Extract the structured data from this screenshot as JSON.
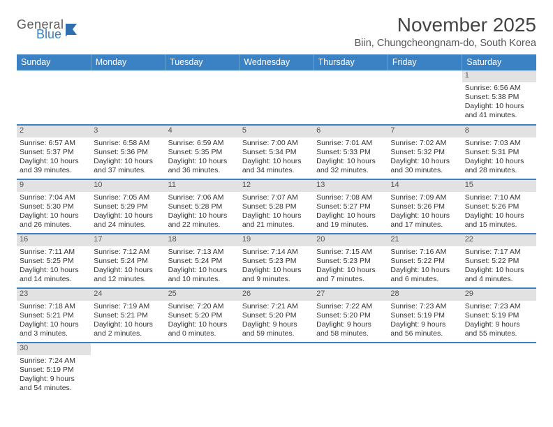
{
  "brand": {
    "part1": "General",
    "part2": "Blue"
  },
  "title": "November 2025",
  "location": "Biin, Chungcheongnam-do, South Korea",
  "colors": {
    "header_bg": "#3b82c4",
    "header_text": "#ffffff",
    "daynum_bg": "#e2e2e2",
    "row_border": "#3b82c4",
    "brand_gray": "#5a5a5a",
    "brand_blue": "#3a7fc4"
  },
  "weekdays": [
    "Sunday",
    "Monday",
    "Tuesday",
    "Wednesday",
    "Thursday",
    "Friday",
    "Saturday"
  ],
  "grid": {
    "first_weekday_index": 6,
    "rows": 6,
    "cols": 7
  },
  "days": [
    {
      "n": 1,
      "sunrise": "6:56 AM",
      "sunset": "5:38 PM",
      "daylight": "10 hours and 41 minutes."
    },
    {
      "n": 2,
      "sunrise": "6:57 AM",
      "sunset": "5:37 PM",
      "daylight": "10 hours and 39 minutes."
    },
    {
      "n": 3,
      "sunrise": "6:58 AM",
      "sunset": "5:36 PM",
      "daylight": "10 hours and 37 minutes."
    },
    {
      "n": 4,
      "sunrise": "6:59 AM",
      "sunset": "5:35 PM",
      "daylight": "10 hours and 36 minutes."
    },
    {
      "n": 5,
      "sunrise": "7:00 AM",
      "sunset": "5:34 PM",
      "daylight": "10 hours and 34 minutes."
    },
    {
      "n": 6,
      "sunrise": "7:01 AM",
      "sunset": "5:33 PM",
      "daylight": "10 hours and 32 minutes."
    },
    {
      "n": 7,
      "sunrise": "7:02 AM",
      "sunset": "5:32 PM",
      "daylight": "10 hours and 30 minutes."
    },
    {
      "n": 8,
      "sunrise": "7:03 AM",
      "sunset": "5:31 PM",
      "daylight": "10 hours and 28 minutes."
    },
    {
      "n": 9,
      "sunrise": "7:04 AM",
      "sunset": "5:30 PM",
      "daylight": "10 hours and 26 minutes."
    },
    {
      "n": 10,
      "sunrise": "7:05 AM",
      "sunset": "5:29 PM",
      "daylight": "10 hours and 24 minutes."
    },
    {
      "n": 11,
      "sunrise": "7:06 AM",
      "sunset": "5:28 PM",
      "daylight": "10 hours and 22 minutes."
    },
    {
      "n": 12,
      "sunrise": "7:07 AM",
      "sunset": "5:28 PM",
      "daylight": "10 hours and 21 minutes."
    },
    {
      "n": 13,
      "sunrise": "7:08 AM",
      "sunset": "5:27 PM",
      "daylight": "10 hours and 19 minutes."
    },
    {
      "n": 14,
      "sunrise": "7:09 AM",
      "sunset": "5:26 PM",
      "daylight": "10 hours and 17 minutes."
    },
    {
      "n": 15,
      "sunrise": "7:10 AM",
      "sunset": "5:26 PM",
      "daylight": "10 hours and 15 minutes."
    },
    {
      "n": 16,
      "sunrise": "7:11 AM",
      "sunset": "5:25 PM",
      "daylight": "10 hours and 14 minutes."
    },
    {
      "n": 17,
      "sunrise": "7:12 AM",
      "sunset": "5:24 PM",
      "daylight": "10 hours and 12 minutes."
    },
    {
      "n": 18,
      "sunrise": "7:13 AM",
      "sunset": "5:24 PM",
      "daylight": "10 hours and 10 minutes."
    },
    {
      "n": 19,
      "sunrise": "7:14 AM",
      "sunset": "5:23 PM",
      "daylight": "10 hours and 9 minutes."
    },
    {
      "n": 20,
      "sunrise": "7:15 AM",
      "sunset": "5:23 PM",
      "daylight": "10 hours and 7 minutes."
    },
    {
      "n": 21,
      "sunrise": "7:16 AM",
      "sunset": "5:22 PM",
      "daylight": "10 hours and 6 minutes."
    },
    {
      "n": 22,
      "sunrise": "7:17 AM",
      "sunset": "5:22 PM",
      "daylight": "10 hours and 4 minutes."
    },
    {
      "n": 23,
      "sunrise": "7:18 AM",
      "sunset": "5:21 PM",
      "daylight": "10 hours and 3 minutes."
    },
    {
      "n": 24,
      "sunrise": "7:19 AM",
      "sunset": "5:21 PM",
      "daylight": "10 hours and 2 minutes."
    },
    {
      "n": 25,
      "sunrise": "7:20 AM",
      "sunset": "5:20 PM",
      "daylight": "10 hours and 0 minutes."
    },
    {
      "n": 26,
      "sunrise": "7:21 AM",
      "sunset": "5:20 PM",
      "daylight": "9 hours and 59 minutes."
    },
    {
      "n": 27,
      "sunrise": "7:22 AM",
      "sunset": "5:20 PM",
      "daylight": "9 hours and 58 minutes."
    },
    {
      "n": 28,
      "sunrise": "7:23 AM",
      "sunset": "5:19 PM",
      "daylight": "9 hours and 56 minutes."
    },
    {
      "n": 29,
      "sunrise": "7:23 AM",
      "sunset": "5:19 PM",
      "daylight": "9 hours and 55 minutes."
    },
    {
      "n": 30,
      "sunrise": "7:24 AM",
      "sunset": "5:19 PM",
      "daylight": "9 hours and 54 minutes."
    }
  ],
  "labels": {
    "sunrise": "Sunrise:",
    "sunset": "Sunset:",
    "daylight": "Daylight:"
  }
}
